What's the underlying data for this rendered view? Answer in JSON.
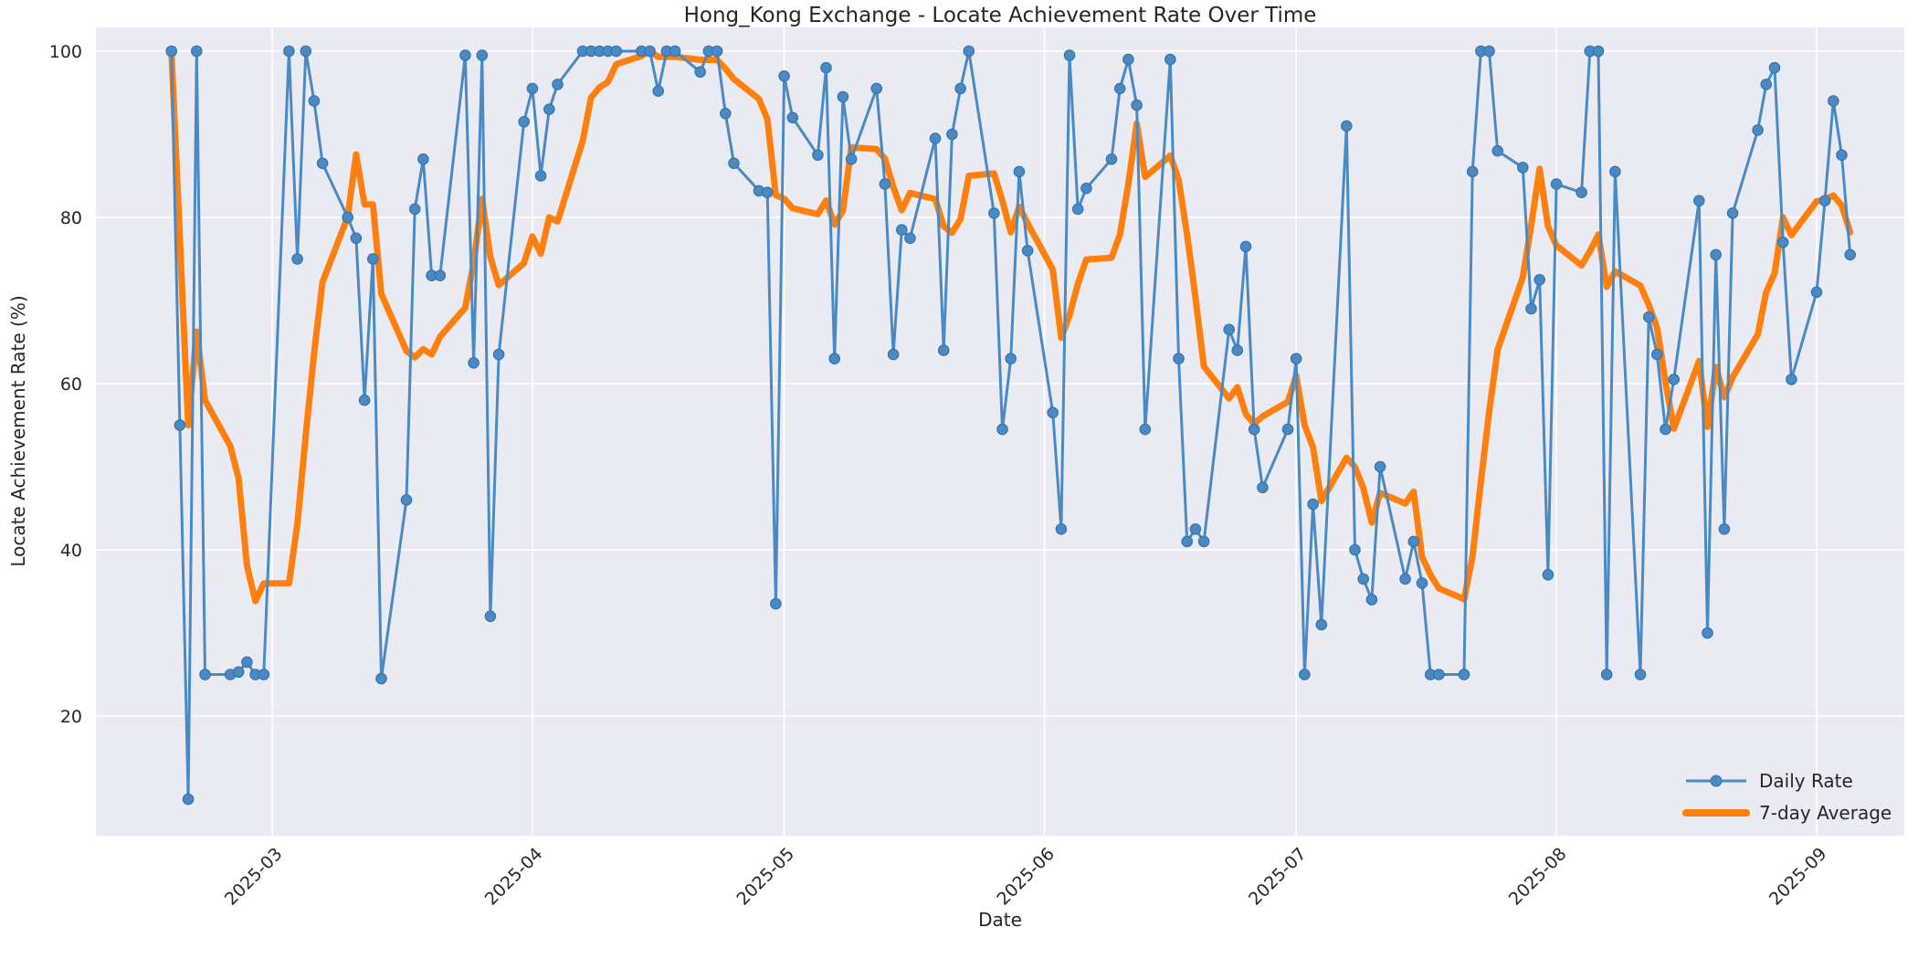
{
  "header": {
    "title": "Hong_Kong Exchange - Locate Achievement Rate Over Time"
  },
  "chart_data": {
    "type": "line",
    "title": "Hong_Kong Exchange - Locate Achievement Rate Over Time",
    "xlabel": "Date",
    "ylabel": "Locate Achievement Rate (%)",
    "grid": true,
    "plot_bg": "#eaeaf2",
    "grid_color": "#ffffff",
    "text_color": "#262626",
    "x_ticks": [
      "2025-03",
      "2025-04",
      "2025-05",
      "2025-06",
      "2025-07",
      "2025-08",
      "2025-09"
    ],
    "y_ticks": [
      20,
      40,
      60,
      80,
      100
    ],
    "ylim": [
      5.5,
      103
    ],
    "xlim": [
      "2025-02-08",
      "2025-09-11"
    ],
    "legend": {
      "position": "lower right",
      "entries": [
        {
          "label": "Daily Rate",
          "color": "#4a8ac4",
          "style": "line-with-marker"
        },
        {
          "label": "7-day Average",
          "color": "#ff7f0e",
          "style": "thick-line"
        }
      ]
    },
    "series": [
      {
        "name": "Daily Rate",
        "color": "#4a8ac4",
        "marker": "circle",
        "dates": [
          "2025-02-17",
          "2025-02-18",
          "2025-02-19",
          "2025-02-20",
          "2025-02-21",
          "2025-02-24",
          "2025-02-25",
          "2025-02-26",
          "2025-02-27",
          "2025-02-28",
          "2025-03-03",
          "2025-03-04",
          "2025-03-05",
          "2025-03-06",
          "2025-03-07",
          "2025-03-10",
          "2025-03-11",
          "2025-03-12",
          "2025-03-13",
          "2025-03-14",
          "2025-03-17",
          "2025-03-18",
          "2025-03-19",
          "2025-03-20",
          "2025-03-21",
          "2025-03-24",
          "2025-03-25",
          "2025-03-26",
          "2025-03-27",
          "2025-03-28",
          "2025-03-31",
          "2025-04-01",
          "2025-04-02",
          "2025-04-03",
          "2025-04-04",
          "2025-04-07",
          "2025-04-08",
          "2025-04-09",
          "2025-04-10",
          "2025-04-11",
          "2025-04-14",
          "2025-04-15",
          "2025-04-16",
          "2025-04-17",
          "2025-04-18",
          "2025-04-21",
          "2025-04-22",
          "2025-04-23",
          "2025-04-24",
          "2025-04-25",
          "2025-04-28",
          "2025-04-29",
          "2025-04-30",
          "2025-05-01",
          "2025-05-02",
          "2025-05-05",
          "2025-05-06",
          "2025-05-07",
          "2025-05-08",
          "2025-05-09",
          "2025-05-12",
          "2025-05-13",
          "2025-05-14",
          "2025-05-15",
          "2025-05-16",
          "2025-05-19",
          "2025-05-20",
          "2025-05-21",
          "2025-05-22",
          "2025-05-23",
          "2025-05-26",
          "2025-05-27",
          "2025-05-28",
          "2025-05-29",
          "2025-05-30",
          "2025-06-02",
          "2025-06-03",
          "2025-06-04",
          "2025-06-05",
          "2025-06-06",
          "2025-06-09",
          "2025-06-10",
          "2025-06-11",
          "2025-06-12",
          "2025-06-13",
          "2025-06-16",
          "2025-06-17",
          "2025-06-18",
          "2025-06-19",
          "2025-06-20",
          "2025-06-23",
          "2025-06-24",
          "2025-06-25",
          "2025-06-26",
          "2025-06-27",
          "2025-06-30",
          "2025-07-01",
          "2025-07-02",
          "2025-07-03",
          "2025-07-04",
          "2025-07-07",
          "2025-07-08",
          "2025-07-09",
          "2025-07-10",
          "2025-07-11",
          "2025-07-14",
          "2025-07-15",
          "2025-07-16",
          "2025-07-17",
          "2025-07-18",
          "2025-07-21",
          "2025-07-22",
          "2025-07-23",
          "2025-07-24",
          "2025-07-25",
          "2025-07-28",
          "2025-07-29",
          "2025-07-30",
          "2025-07-31",
          "2025-08-01",
          "2025-08-04",
          "2025-08-05",
          "2025-08-06",
          "2025-08-07",
          "2025-08-08",
          "2025-08-11",
          "2025-08-12",
          "2025-08-13",
          "2025-08-14",
          "2025-08-15",
          "2025-08-18",
          "2025-08-19",
          "2025-08-20",
          "2025-08-21",
          "2025-08-22",
          "2025-08-25",
          "2025-08-26",
          "2025-08-27",
          "2025-08-28",
          "2025-08-29",
          "2025-09-01",
          "2025-09-02",
          "2025-09-03",
          "2025-09-04",
          "2025-09-05"
        ],
        "values": [
          100,
          55,
          10,
          100,
          25,
          25,
          25.3,
          26.5,
          25,
          25,
          100,
          75,
          100,
          94,
          86.5,
          80,
          77.5,
          58,
          75,
          24.5,
          46,
          81,
          87,
          73,
          73,
          99.5,
          62.5,
          99.5,
          32,
          63.5,
          91.5,
          95.5,
          85,
          93,
          96,
          100,
          100,
          100,
          100,
          100,
          100,
          100,
          95.2,
          100,
          100,
          97.5,
          100,
          100,
          92.5,
          86.5,
          83.2,
          83,
          33.5,
          97,
          92,
          87.5,
          98,
          63,
          94.5,
          87,
          95.5,
          84,
          63.5,
          78.5,
          77.5,
          89.5,
          64,
          90,
          95.5,
          100,
          80.5,
          54.5,
          63,
          85.5,
          76,
          56.5,
          42.5,
          99.5,
          81,
          83.5,
          87,
          95.5,
          99,
          93.5,
          54.5,
          99,
          63,
          41,
          42.5,
          41,
          66.5,
          64,
          76.5,
          54.5,
          47.5,
          54.5,
          63,
          25,
          45.5,
          31,
          91,
          40,
          36.5,
          34,
          50,
          36.5,
          41,
          36,
          25,
          25,
          25,
          85.5,
          100,
          100,
          88,
          86,
          69,
          72.5,
          37,
          84,
          83,
          100,
          100,
          25,
          85.5,
          25,
          68,
          63.5,
          54.5,
          60.5,
          82,
          30,
          75.5,
          42.5,
          80.5,
          90.5,
          96,
          98,
          77,
          60.5,
          71,
          82,
          94,
          87.5,
          75.5
        ]
      },
      {
        "name": "7-day Average",
        "color": "#ff7f0e",
        "derived": "rolling mean of Daily Rate over a 7-point window, min_periods=1",
        "window": 7
      }
    ]
  }
}
